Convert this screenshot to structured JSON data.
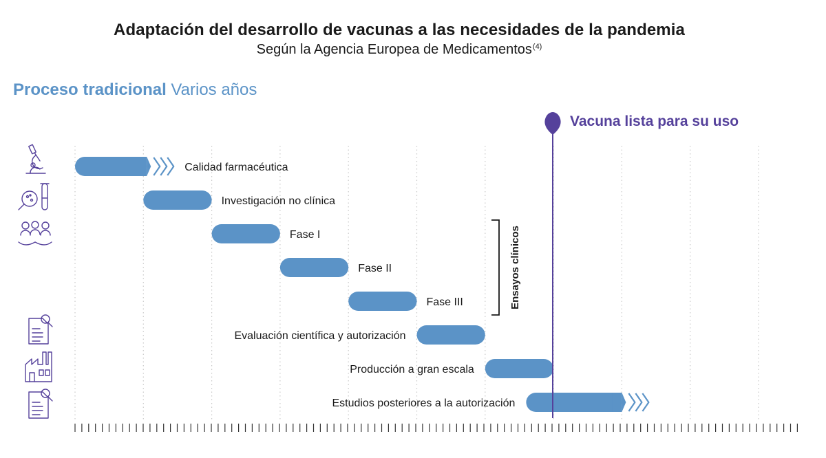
{
  "title": "Adaptación del desarrollo de vacunas a las necesidades de la pandemia",
  "subtitle": "Según la Agencia Europea de Medicamentos",
  "subtitle_ref": "(4)",
  "section": {
    "bold": "Proceso tradicional",
    "light": "Varios años"
  },
  "milestone": "Vacuna lista para su uso",
  "bracket_label": "Ensayos clínicos",
  "colors": {
    "bar": "#5b93c7",
    "milestone": "#55419b",
    "text": "#1a1a1a",
    "icon": "#55419b",
    "grid": "#c9c9c9"
  },
  "icons": [
    "microscope-icon",
    "petri-dish-test-tube-icon",
    "people-group-icon",
    "document-review-icon",
    "factory-icon",
    "document-search-icon"
  ],
  "chart_data": {
    "type": "gantt",
    "time_units": 10,
    "milestone_at": 7,
    "tasks": [
      {
        "label": "Calidad farmacéutica",
        "start": 0,
        "end": 1.05,
        "continues": true,
        "label_side": "right"
      },
      {
        "label": "Investigación no clínica",
        "start": 1,
        "end": 2,
        "continues": false,
        "label_side": "right"
      },
      {
        "label": "Fase I",
        "start": 2,
        "end": 3,
        "continues": false,
        "label_side": "right"
      },
      {
        "label": "Fase II",
        "start": 3,
        "end": 4,
        "continues": false,
        "label_side": "right"
      },
      {
        "label": "Fase III",
        "start": 4,
        "end": 5,
        "continues": false,
        "label_side": "right"
      },
      {
        "label": "Evaluación científica y autorización",
        "start": 5,
        "end": 6,
        "continues": false,
        "label_side": "left"
      },
      {
        "label": "Producción a gran escala",
        "start": 6,
        "end": 7,
        "continues": false,
        "label_side": "left"
      },
      {
        "label": "Estudios posteriores a la autorización",
        "start": 6.6,
        "end": 8,
        "continues": true,
        "label_side": "left"
      }
    ],
    "bracket": {
      "label": "Ensayos clínicos",
      "from_task": 2,
      "to_task": 4
    }
  }
}
